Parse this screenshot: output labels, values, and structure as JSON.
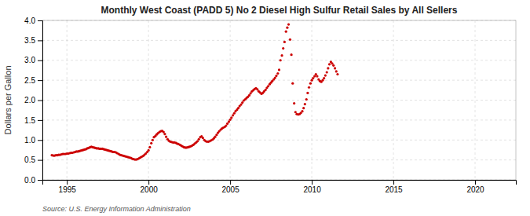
{
  "chart_data": {
    "type": "scatter",
    "title": "Monthly West Coast (PADD 5) No 2 Diesel High Sulfur Retail Sales by All Sellers",
    "ylabel": "Dollars per Gallon",
    "annotations": [
      "Source: U.S. Energy Information Administration"
    ],
    "color": "#cc0000",
    "grid": true,
    "xlim": [
      1993.5,
      2022.5
    ],
    "ylim": [
      0.0,
      4.0
    ],
    "xticks": [
      1995,
      2000,
      2005,
      2010,
      2015,
      2020
    ],
    "yticks": [
      {
        "value": 0.0,
        "label": "0.0"
      },
      0.5,
      {
        "value": 1.0,
        "label": "1.0"
      },
      1.5,
      {
        "value": 2.0,
        "label": "2.0"
      },
      2.5,
      {
        "value": 3.0,
        "label": "3.0"
      },
      3.5,
      {
        "value": 4.0,
        "label": "4.0"
      }
    ],
    "x": [
      1994.08,
      1994.17,
      1994.25,
      1994.33,
      1994.42,
      1994.5,
      1994.58,
      1994.67,
      1994.75,
      1994.83,
      1994.92,
      1995.0,
      1995.08,
      1995.17,
      1995.25,
      1995.33,
      1995.42,
      1995.5,
      1995.58,
      1995.67,
      1995.75,
      1995.83,
      1995.92,
      1996.0,
      1996.08,
      1996.17,
      1996.25,
      1996.33,
      1996.42,
      1996.5,
      1996.58,
      1996.67,
      1996.75,
      1996.83,
      1996.92,
      1997.0,
      1997.08,
      1997.17,
      1997.25,
      1997.33,
      1997.42,
      1997.5,
      1997.58,
      1997.67,
      1997.75,
      1997.83,
      1997.92,
      1998.0,
      1998.08,
      1998.17,
      1998.25,
      1998.33,
      1998.42,
      1998.5,
      1998.58,
      1998.67,
      1998.75,
      1998.83,
      1998.92,
      1999.0,
      1999.08,
      1999.17,
      1999.25,
      1999.33,
      1999.42,
      1999.5,
      1999.58,
      1999.67,
      1999.75,
      1999.83,
      1999.92,
      2000.0,
      2000.08,
      2000.17,
      2000.25,
      2000.33,
      2000.42,
      2000.5,
      2000.58,
      2000.67,
      2000.75,
      2000.83,
      2000.92,
      2001.0,
      2001.08,
      2001.17,
      2001.25,
      2001.33,
      2001.42,
      2001.5,
      2001.58,
      2001.67,
      2001.75,
      2001.83,
      2001.92,
      2002.0,
      2002.08,
      2002.17,
      2002.25,
      2002.33,
      2002.42,
      2002.5,
      2002.58,
      2002.67,
      2002.75,
      2002.83,
      2002.92,
      2003.0,
      2003.08,
      2003.17,
      2003.25,
      2003.33,
      2003.42,
      2003.5,
      2003.58,
      2003.67,
      2003.75,
      2003.83,
      2003.92,
      2004.0,
      2004.08,
      2004.17,
      2004.25,
      2004.33,
      2004.42,
      2004.5,
      2004.58,
      2004.67,
      2004.75,
      2004.83,
      2004.92,
      2005.0,
      2005.08,
      2005.17,
      2005.25,
      2005.33,
      2005.42,
      2005.5,
      2005.58,
      2005.67,
      2005.75,
      2005.83,
      2005.92,
      2006.0,
      2006.08,
      2006.17,
      2006.25,
      2006.33,
      2006.42,
      2006.5,
      2006.58,
      2006.67,
      2006.75,
      2006.83,
      2006.92,
      2007.0,
      2007.08,
      2007.17,
      2007.25,
      2007.33,
      2007.42,
      2007.5,
      2007.58,
      2007.67,
      2007.75,
      2007.83,
      2007.92,
      2008.0,
      2008.08,
      2008.17,
      2008.25,
      2008.33,
      2008.42,
      2008.5,
      2008.58,
      2008.67,
      2008.75,
      2008.83,
      2008.92,
      2009.0,
      2009.08,
      2009.17,
      2009.25,
      2009.33,
      2009.42,
      2009.5,
      2009.58,
      2009.67,
      2009.75,
      2009.83,
      2009.92,
      2010.0,
      2010.08,
      2010.17,
      2010.25,
      2010.33,
      2010.42,
      2010.5,
      2010.58,
      2010.67,
      2010.75,
      2010.83,
      2010.92,
      2011.0,
      2011.08,
      2011.17,
      2011.25,
      2011.33,
      2011.42,
      2011.5,
      2011.58
    ],
    "values": [
      0.62,
      0.61,
      0.61,
      0.62,
      0.62,
      0.63,
      0.63,
      0.64,
      0.65,
      0.65,
      0.65,
      0.66,
      0.66,
      0.67,
      0.68,
      0.68,
      0.69,
      0.7,
      0.71,
      0.71,
      0.72,
      0.73,
      0.74,
      0.75,
      0.76,
      0.77,
      0.79,
      0.8,
      0.82,
      0.83,
      0.82,
      0.81,
      0.8,
      0.79,
      0.79,
      0.78,
      0.78,
      0.78,
      0.77,
      0.76,
      0.75,
      0.74,
      0.73,
      0.72,
      0.71,
      0.7,
      0.7,
      0.69,
      0.67,
      0.65,
      0.63,
      0.62,
      0.61,
      0.6,
      0.59,
      0.58,
      0.57,
      0.56,
      0.55,
      0.53,
      0.52,
      0.51,
      0.51,
      0.52,
      0.54,
      0.56,
      0.58,
      0.6,
      0.63,
      0.66,
      0.7,
      0.74,
      0.82,
      0.92,
      1.0,
      1.07,
      1.1,
      1.14,
      1.17,
      1.2,
      1.22,
      1.23,
      1.2,
      1.15,
      1.08,
      1.02,
      0.98,
      0.96,
      0.95,
      0.94,
      0.94,
      0.93,
      0.91,
      0.9,
      0.88,
      0.86,
      0.84,
      0.82,
      0.81,
      0.81,
      0.82,
      0.83,
      0.84,
      0.86,
      0.88,
      0.91,
      0.94,
      0.97,
      1.02,
      1.07,
      1.09,
      1.05,
      1.0,
      0.97,
      0.96,
      0.96,
      0.97,
      0.99,
      1.01,
      1.04,
      1.08,
      1.13,
      1.18,
      1.22,
      1.26,
      1.29,
      1.31,
      1.33,
      1.36,
      1.41,
      1.46,
      1.51,
      1.56,
      1.62,
      1.67,
      1.72,
      1.76,
      1.8,
      1.85,
      1.89,
      1.94,
      1.99,
      2.02,
      2.05,
      2.08,
      2.12,
      2.17,
      2.22,
      2.25,
      2.28,
      2.3,
      2.27,
      2.22,
      2.19,
      2.16,
      2.18,
      2.22,
      2.26,
      2.31,
      2.35,
      2.4,
      2.44,
      2.48,
      2.52,
      2.56,
      2.61,
      2.67,
      2.76,
      3.0,
      3.12,
      3.3,
      3.46,
      3.72,
      3.82,
      3.9,
      3.52,
      3.14,
      2.42,
      1.92,
      1.7,
      1.65,
      1.64,
      1.65,
      1.68,
      1.72,
      1.8,
      1.9,
      2.02,
      2.18,
      2.32,
      2.42,
      2.5,
      2.55,
      2.6,
      2.65,
      2.6,
      2.52,
      2.48,
      2.46,
      2.5,
      2.55,
      2.62,
      2.7,
      2.8,
      2.9,
      2.96,
      2.92,
      2.87,
      2.8,
      2.72,
      2.65
    ]
  }
}
